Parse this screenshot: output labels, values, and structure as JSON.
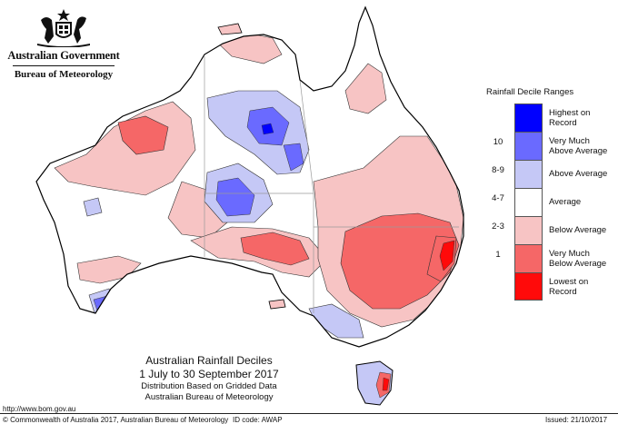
{
  "header": {
    "government": "Australian Government",
    "bureau": "Bureau of Meteorology"
  },
  "map": {
    "title": "Australian Rainfall Deciles",
    "subtitle": "1 July to 30 September 2017",
    "note_1": "Distribution Based on Gridded Data",
    "note_2": "Australian Bureau of Meteorology"
  },
  "legend": {
    "title": "Rainfall Decile Ranges",
    "items": [
      {
        "range": "",
        "label_1": "Highest on",
        "label_2": "Record",
        "color": "#0000ff"
      },
      {
        "range": "10",
        "label_1": "Very Much",
        "label_2": "Above Average",
        "color": "#6a6aff"
      },
      {
        "range": "8-9",
        "label_1": "Above Average",
        "label_2": "",
        "color": "#c5c8f6"
      },
      {
        "range": "4-7",
        "label_1": "Average",
        "label_2": "",
        "color": "#ffffff"
      },
      {
        "range": "2-3",
        "label_1": "Below Average",
        "label_2": "",
        "color": "#f7c4c4"
      },
      {
        "range": "1",
        "label_1": "Very Much",
        "label_2": "Below Average",
        "color": "#f56767"
      },
      {
        "range": "",
        "label_1": "Lowest on",
        "label_2": "Record",
        "color": "#ff0a0a"
      }
    ]
  },
  "footer": {
    "url": "http://www.bom.gov.au",
    "copyright": "© Commonwealth of Australia 2017, Australian Bureau of Meteorology",
    "id_code": "ID code: AWAP",
    "issued": "Issued: 21/10/2017"
  },
  "colors": {
    "average": "#ffffff",
    "above": "#c5c8f6",
    "very_above": "#6a6aff",
    "highest": "#0000ff",
    "below": "#f7c4c4",
    "very_below": "#f56767",
    "lowest": "#ff0a0a",
    "outline": "#000000",
    "boundary": "#9a9a9a"
  }
}
